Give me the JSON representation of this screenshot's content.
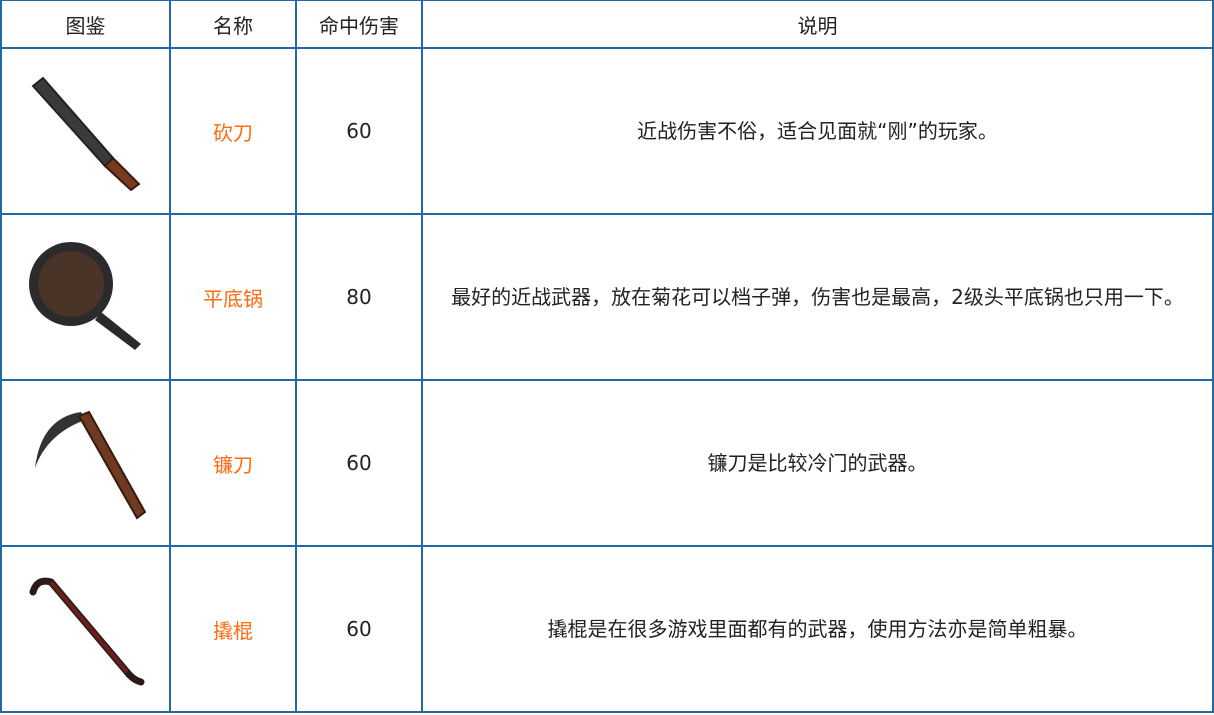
{
  "headers": [
    "图鉴",
    "名称",
    "命中伤害",
    "说明"
  ],
  "rows": [
    {
      "icon": "machete-icon",
      "name": "砍刀",
      "damage": "60",
      "description": "近战伤害不俗，适合见面就“刚”的玩家。"
    },
    {
      "icon": "frying-pan-icon",
      "name": "平底锅",
      "damage": "80",
      "description": "最好的近战武器，放在菊花可以档子弹，伤害也是最高，2级头平底锅也只用一下。"
    },
    {
      "icon": "sickle-icon",
      "name": "镰刀",
      "damage": "60",
      "description": "镰刀是比较冷门的武器。"
    },
    {
      "icon": "crowbar-icon",
      "name": "撬棍",
      "damage": "60",
      "description": "撬棍是在很多游戏里面都有的武器，使用方法亦是简单粗暴。"
    }
  ],
  "colors": {
    "name": "#ff6a13",
    "border": "#1f6aa5"
  }
}
